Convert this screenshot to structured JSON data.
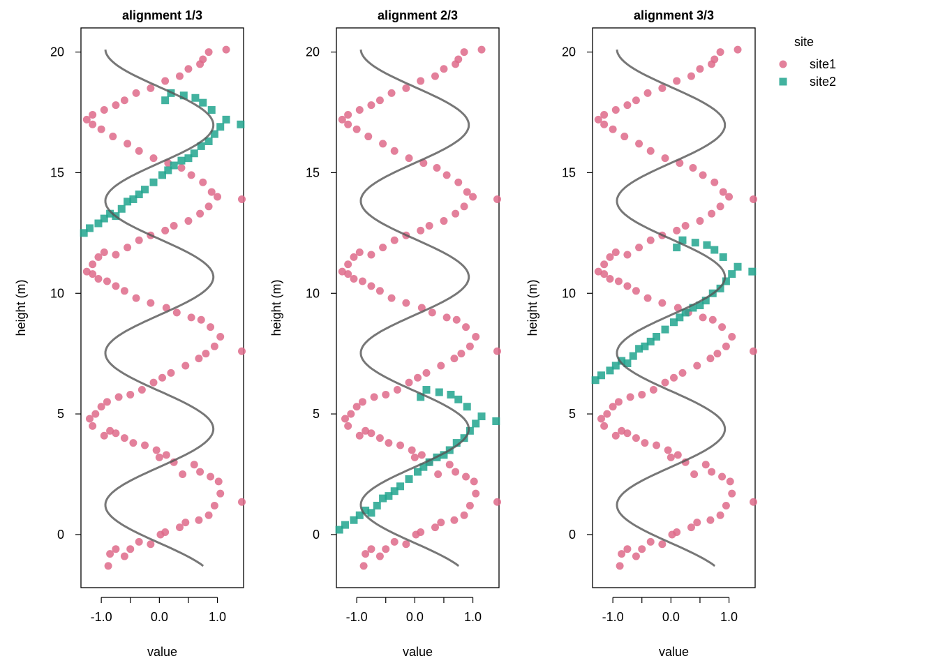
{
  "chart_data": {
    "type": "scatter",
    "layout": "faceted",
    "legend": {
      "title": "site",
      "placement": "right",
      "entries": [
        {
          "name": "site1",
          "color": "#DE6A8A",
          "symbol": "circle"
        },
        {
          "name": "site2",
          "color": "#21A58E",
          "symbol": "square"
        }
      ]
    },
    "colors": {
      "site1": "#DE6A8A",
      "site2": "#21A58E",
      "fit": "#555555"
    },
    "grid": false,
    "panels": [
      {
        "title": "alignment 1/3",
        "xlabel": "value",
        "ylabel": "height (m)",
        "xlim": [
          -1.35,
          1.45
        ],
        "ylim": [
          -2.2,
          21.0
        ],
        "xticks": [
          "-1.0",
          "0.0",
          "1.0"
        ],
        "xtick_values": [
          -1.0,
          0.0,
          1.0
        ],
        "yticks": [
          "0",
          "5",
          "10",
          "15",
          "20"
        ],
        "ytick_values": [
          0,
          5,
          10,
          15,
          20
        ],
        "site2_ylim": [
          12.5,
          18.3
        ],
        "site2_yoffset": 0.0
      },
      {
        "title": "alignment 2/3",
        "xlabel": "value",
        "ylabel": "height (m)",
        "xlim": [
          -1.35,
          1.45
        ],
        "ylim": [
          -2.2,
          21.0
        ],
        "xticks": [
          "-1.0",
          "0.0",
          "1.0"
        ],
        "xtick_values": [
          -1.0,
          0.0,
          1.0
        ],
        "yticks": [
          "0",
          "5",
          "10",
          "15",
          "20"
        ],
        "ytick_values": [
          0,
          5,
          10,
          15,
          20
        ],
        "site2_ylim": [
          0.2,
          6.0
        ],
        "site2_yoffset": -12.3
      },
      {
        "title": "alignment 3/3",
        "xlabel": "value",
        "ylabel": "height (m)",
        "xlim": [
          -1.35,
          1.45
        ],
        "ylim": [
          -2.2,
          21.0
        ],
        "xticks": [
          "-1.0",
          "0.0",
          "1.0"
        ],
        "xtick_values": [
          -1.0,
          0.0,
          1.0
        ],
        "yticks": [
          "0",
          "5",
          "10",
          "15",
          "20"
        ],
        "ytick_values": [
          0,
          5,
          10,
          15,
          20
        ],
        "site2_ylim": [
          6.4,
          12.2
        ],
        "site2_yoffset": -6.1
      }
    ],
    "site1": {
      "x": [
        -0.88,
        -0.85,
        -0.75,
        -0.6,
        -0.5,
        -0.35,
        -0.15,
        0.02,
        0.1,
        0.35,
        0.45,
        0.68,
        0.85,
        0.95,
        1.05,
        1.42,
        1.02,
        0.88,
        0.7,
        0.6,
        0.4,
        0.25,
        0.12,
        0.0,
        -0.05,
        -0.25,
        -0.45,
        -0.6,
        -0.75,
        -0.85,
        -0.95,
        -1.15,
        -1.2,
        -1.1,
        -1.0,
        -0.9,
        -0.7,
        -0.5,
        -0.3,
        -0.1,
        0.05,
        0.2,
        0.45,
        0.68,
        0.8,
        0.95,
        1.05,
        1.42,
        0.88,
        0.72,
        0.55,
        0.3,
        0.12,
        -0.15,
        -0.4,
        -0.6,
        -0.75,
        -0.9,
        -1.05,
        -1.15,
        -1.25,
        -1.15,
        -1.05,
        -0.95,
        -0.75,
        -0.55,
        -0.35,
        -0.15,
        0.1,
        0.25,
        0.5,
        0.7,
        0.85,
        1.0,
        1.42,
        0.9,
        0.75,
        0.55,
        0.38,
        0.15,
        -0.1,
        -0.35,
        -0.55,
        -0.8,
        -1.0,
        -1.15,
        -1.25,
        -1.15,
        -0.95,
        -0.75,
        -0.6,
        -0.4,
        -0.15,
        0.1,
        0.35,
        0.5,
        0.7,
        0.75,
        0.85,
        1.15
      ],
      "y": [
        -1.3,
        -0.8,
        -0.6,
        -0.9,
        -0.6,
        -0.3,
        -0.4,
        0.0,
        0.1,
        0.3,
        0.5,
        0.6,
        0.8,
        1.2,
        1.7,
        1.35,
        2.2,
        2.4,
        2.6,
        2.9,
        2.5,
        3.0,
        3.3,
        3.2,
        3.5,
        3.7,
        3.8,
        4.0,
        4.2,
        4.3,
        4.1,
        4.5,
        4.8,
        5.0,
        5.3,
        5.5,
        5.7,
        5.8,
        6.0,
        6.3,
        6.5,
        6.7,
        7.0,
        7.3,
        7.5,
        7.8,
        8.2,
        7.6,
        8.6,
        8.9,
        9.0,
        9.2,
        9.4,
        9.6,
        9.8,
        10.1,
        10.3,
        10.5,
        10.6,
        10.8,
        10.9,
        11.2,
        11.5,
        11.7,
        11.6,
        11.9,
        12.2,
        12.4,
        12.6,
        12.8,
        13.0,
        13.3,
        13.6,
        14.0,
        13.9,
        14.2,
        14.6,
        14.9,
        15.2,
        15.4,
        15.6,
        15.9,
        16.2,
        16.5,
        16.8,
        17.0,
        17.2,
        17.4,
        17.6,
        17.8,
        18.0,
        18.3,
        18.5,
        18.8,
        19.0,
        19.3,
        19.5,
        19.7,
        20.0,
        20.1
      ]
    },
    "site2": {
      "x": [
        -1.3,
        -1.2,
        -1.05,
        -0.95,
        -0.85,
        -0.75,
        -0.65,
        -0.55,
        -0.45,
        -0.35,
        -0.25,
        -0.1,
        0.05,
        0.15,
        0.25,
        0.38,
        0.5,
        0.6,
        0.72,
        0.85,
        0.95,
        1.05,
        1.15,
        1.4,
        0.9,
        0.75,
        0.62,
        0.42,
        0.2,
        0.1
      ],
      "y": [
        12.5,
        12.7,
        12.9,
        13.1,
        13.3,
        13.2,
        13.5,
        13.8,
        13.9,
        14.1,
        14.3,
        14.6,
        14.9,
        15.1,
        15.3,
        15.5,
        15.6,
        15.8,
        16.1,
        16.3,
        16.6,
        16.9,
        17.2,
        17.0,
        17.6,
        17.9,
        18.1,
        18.2,
        18.3,
        18.0
      ]
    },
    "fit": {
      "description": "smooth trend",
      "amplitude": 1.0,
      "period": 6.3,
      "y_range": [
        -1.3,
        20.1
      ]
    }
  }
}
